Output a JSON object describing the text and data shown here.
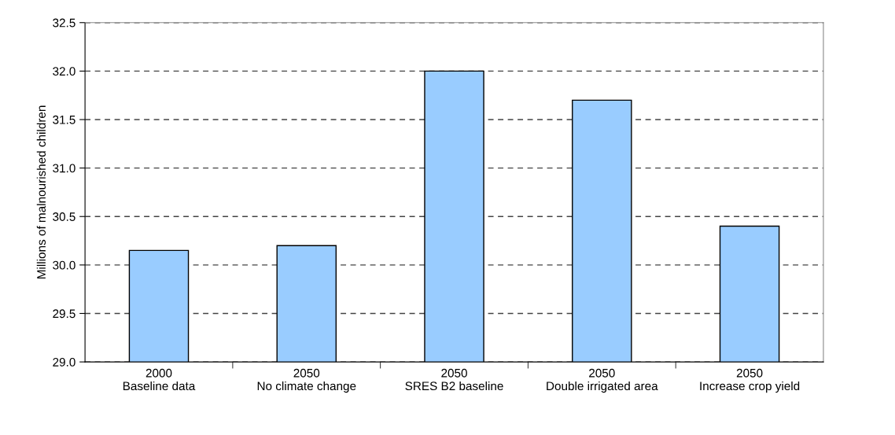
{
  "chart_data": {
    "type": "bar",
    "ylabel": "Millions of malnourished children",
    "categories": [
      "2000\nBaseline data",
      "2050\nNo climate change",
      "2050\nSRES B2 baseline",
      "2050\nDouble irrigated area",
      "2050\nIncrease crop yield"
    ],
    "values": [
      30.15,
      30.2,
      32.0,
      31.7,
      30.4
    ],
    "color": "#99ccff",
    "ylim": [
      29.0,
      32.5
    ],
    "yticks": [
      {
        "value": 29.0,
        "label": "29.0"
      },
      {
        "value": 29.5,
        "label": "29.5"
      },
      {
        "value": 30.0,
        "label": "30.0"
      },
      {
        "value": 30.5,
        "label": "30.5"
      },
      {
        "value": 31.0,
        "label": "31.0"
      },
      {
        "value": 31.5,
        "label": "31.5"
      },
      {
        "value": 32.0,
        "label": "32.0"
      },
      {
        "value": 32.5,
        "label": "32.5"
      }
    ],
    "grid": "y",
    "legend": false
  }
}
